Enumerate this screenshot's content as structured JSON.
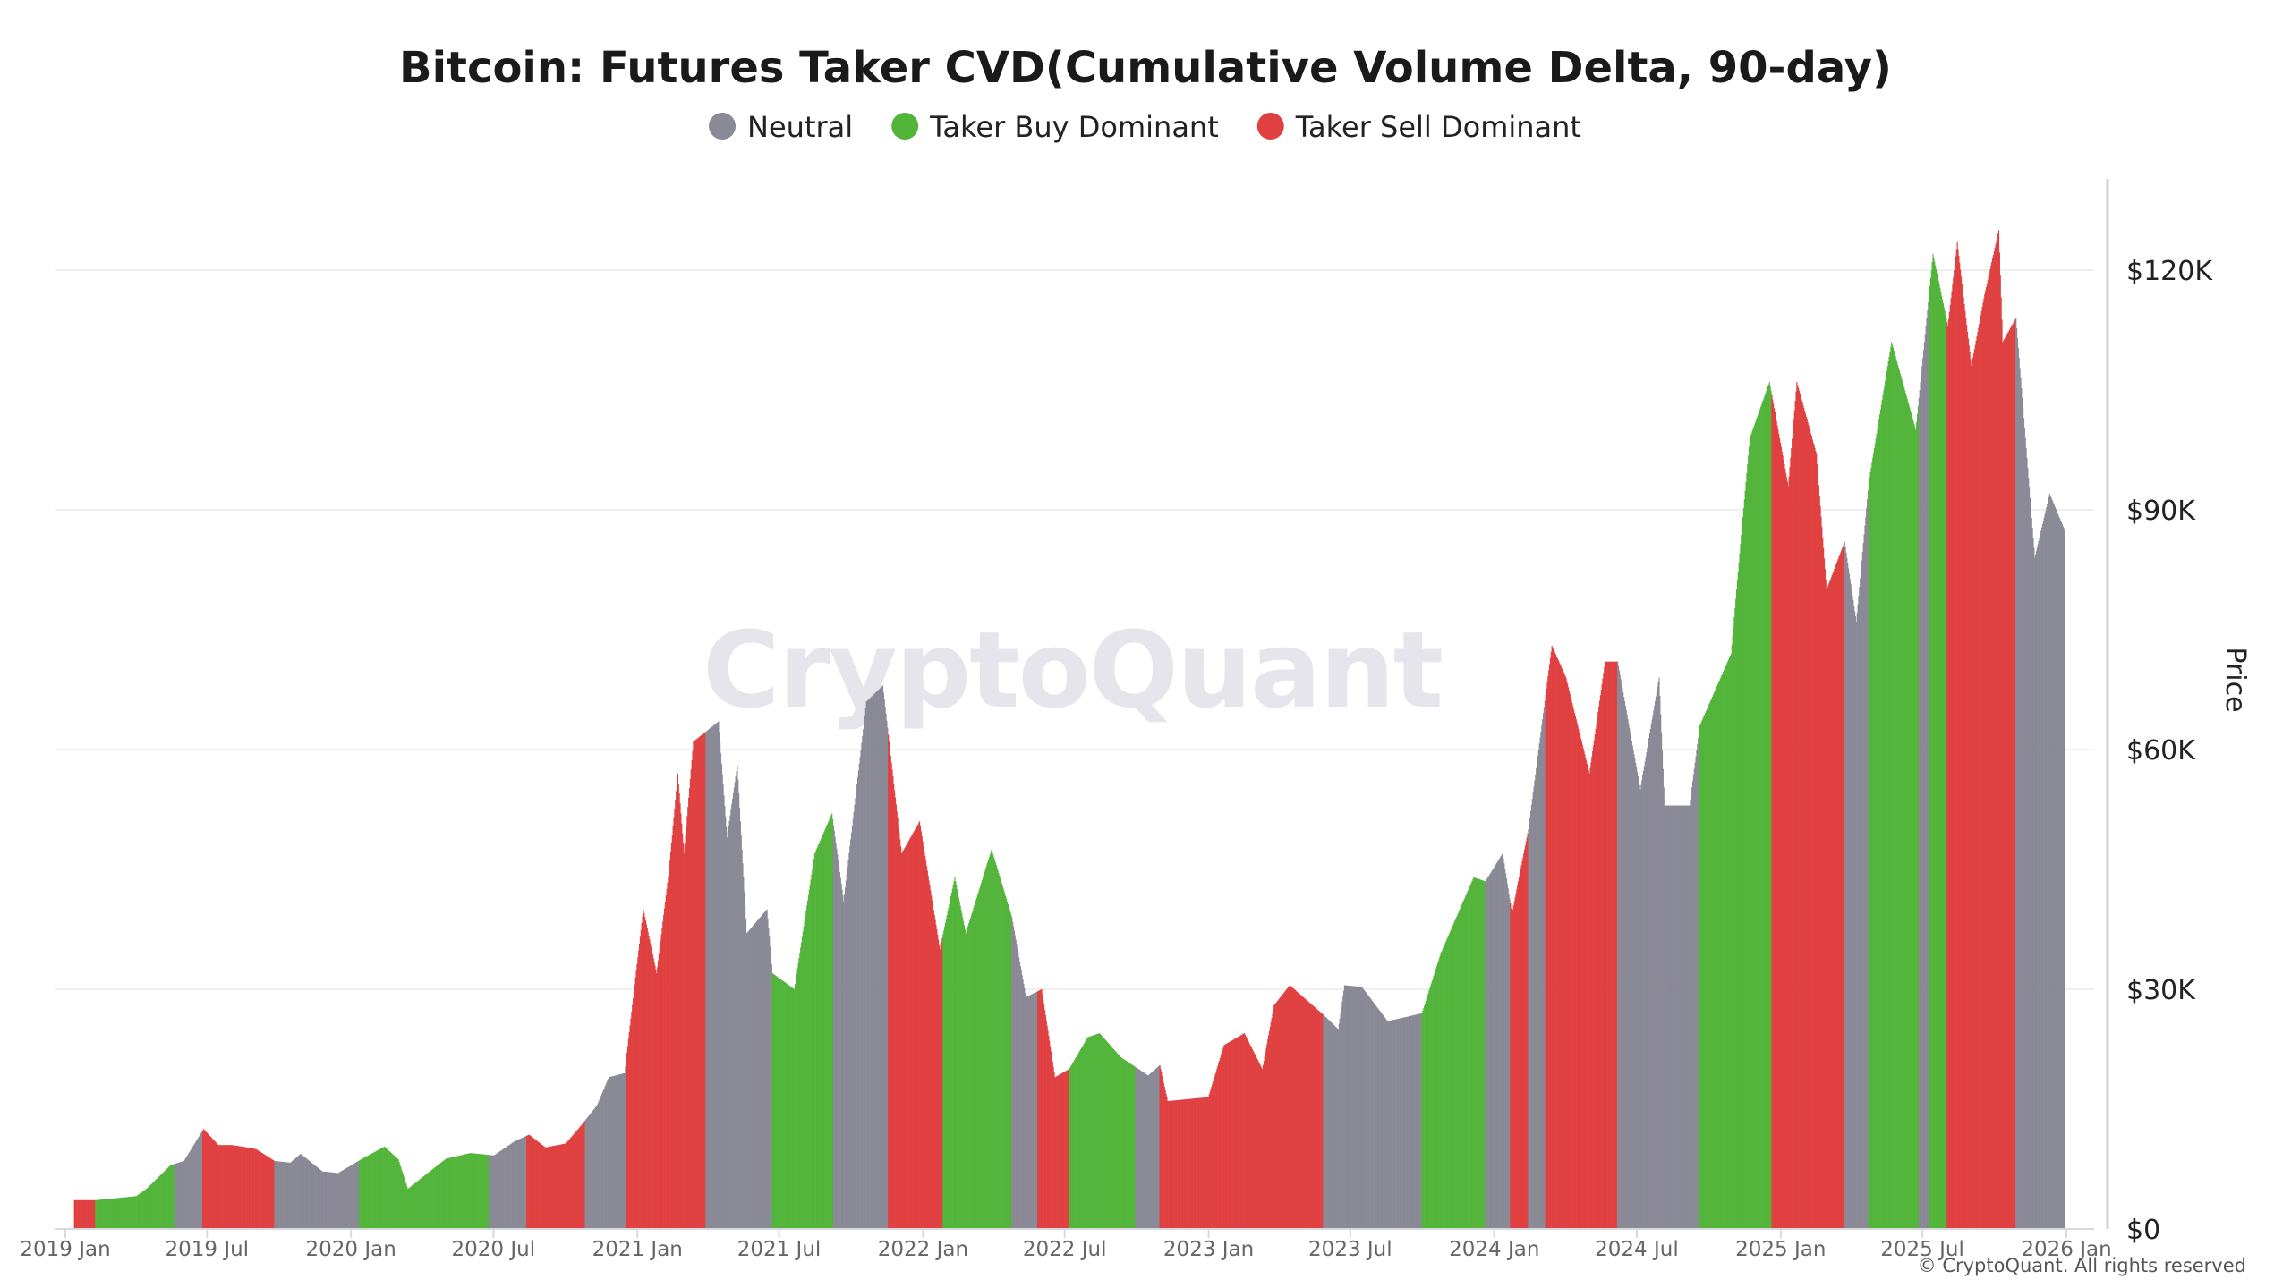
{
  "chart_data": {
    "type": "bar",
    "title": "Bitcoin: Futures Taker CVD(Cumulative Volume Delta, 90-day)",
    "ylabel": "Price",
    "xlabel": "",
    "ylim": [
      0,
      130000
    ],
    "xlim": [
      "2019-01-01",
      "2026-01-15"
    ],
    "grid": true,
    "legend_position": "top",
    "watermark": "CryptoQuant",
    "copyright": "© CryptoQuant. All rights reserved",
    "colors": {
      "Neutral": "#8a8996",
      "Taker Buy Dominant": "#52b53a",
      "Taker Sell Dominant": "#e04040"
    },
    "legend": [
      "Neutral",
      "Taker Buy Dominant",
      "Taker Sell Dominant"
    ],
    "x_ticks": [
      {
        "label": "2019 Jan",
        "date": "2019-01-01"
      },
      {
        "label": "2019 Jul",
        "date": "2019-07-01"
      },
      {
        "label": "2020 Jan",
        "date": "2020-01-01"
      },
      {
        "label": "2020 Jul",
        "date": "2020-07-01"
      },
      {
        "label": "2021 Jan",
        "date": "2021-01-01"
      },
      {
        "label": "2021 Jul",
        "date": "2021-07-01"
      },
      {
        "label": "2022 Jan",
        "date": "2022-01-01"
      },
      {
        "label": "2022 Jul",
        "date": "2022-07-01"
      },
      {
        "label": "2023 Jan",
        "date": "2023-01-01"
      },
      {
        "label": "2023 Jul",
        "date": "2023-07-01"
      },
      {
        "label": "2024 Jan",
        "date": "2024-01-01"
      },
      {
        "label": "2024 Jul",
        "date": "2024-07-01"
      },
      {
        "label": "2025 Jan",
        "date": "2025-01-01"
      },
      {
        "label": "2025 Jul",
        "date": "2025-07-01"
      },
      {
        "label": "2026 Jan",
        "date": "2026-01-01"
      }
    ],
    "y_ticks": [
      {
        "label": "$0",
        "value": 0
      },
      {
        "label": "$30K",
        "value": 30000
      },
      {
        "label": "$60K",
        "value": 60000
      },
      {
        "label": "$90K",
        "value": 90000
      },
      {
        "label": "$120K",
        "value": 120000
      }
    ],
    "regimes": [
      [
        "2019-01-12",
        "2019-02-08",
        "Taker Sell Dominant"
      ],
      [
        "2019-02-08",
        "2019-05-20",
        "Taker Buy Dominant"
      ],
      [
        "2019-05-20",
        "2019-06-25",
        "Neutral"
      ],
      [
        "2019-06-25",
        "2019-09-25",
        "Taker Sell Dominant"
      ],
      [
        "2019-09-25",
        "2020-01-11",
        "Neutral"
      ],
      [
        "2020-01-11",
        "2020-06-25",
        "Taker Buy Dominant"
      ],
      [
        "2020-06-25",
        "2020-08-12",
        "Neutral"
      ],
      [
        "2020-08-12",
        "2020-10-26",
        "Taker Sell Dominant"
      ],
      [
        "2020-10-26",
        "2020-12-17",
        "Neutral"
      ],
      [
        "2020-12-17",
        "2021-03-29",
        "Taker Sell Dominant"
      ],
      [
        "2021-03-29",
        "2021-06-22",
        "Neutral"
      ],
      [
        "2021-06-22",
        "2021-09-08",
        "Taker Buy Dominant"
      ],
      [
        "2021-09-08",
        "2021-11-17",
        "Neutral"
      ],
      [
        "2021-11-17",
        "2022-01-26",
        "Taker Sell Dominant"
      ],
      [
        "2022-01-26",
        "2022-04-24",
        "Taker Buy Dominant"
      ],
      [
        "2022-04-24",
        "2022-05-27",
        "Neutral"
      ],
      [
        "2022-05-27",
        "2022-07-06",
        "Taker Sell Dominant"
      ],
      [
        "2022-07-06",
        "2022-09-29",
        "Taker Buy Dominant"
      ],
      [
        "2022-09-29",
        "2022-10-30",
        "Neutral"
      ],
      [
        "2022-10-30",
        "2023-05-27",
        "Taker Sell Dominant"
      ],
      [
        "2023-05-27",
        "2023-09-30",
        "Neutral"
      ],
      [
        "2023-09-30",
        "2023-12-20",
        "Taker Buy Dominant"
      ],
      [
        "2023-12-20",
        "2024-01-21",
        "Neutral"
      ],
      [
        "2024-01-21",
        "2024-02-13",
        "Taker Sell Dominant"
      ],
      [
        "2024-02-13",
        "2024-03-06",
        "Neutral"
      ],
      [
        "2024-03-06",
        "2024-06-06",
        "Taker Sell Dominant"
      ],
      [
        "2024-06-06",
        "2024-09-19",
        "Neutral"
      ],
      [
        "2024-09-19",
        "2024-12-20",
        "Taker Buy Dominant"
      ],
      [
        "2024-12-20",
        "2025-03-23",
        "Taker Sell Dominant"
      ],
      [
        "2025-03-23",
        "2025-04-23",
        "Neutral"
      ],
      [
        "2025-04-23",
        "2025-06-26",
        "Taker Buy Dominant"
      ],
      [
        "2025-06-26",
        "2025-07-10",
        "Neutral"
      ],
      [
        "2025-07-10",
        "2025-08-01",
        "Taker Buy Dominant"
      ],
      [
        "2025-08-01",
        "2025-10-28",
        "Taker Sell Dominant"
      ],
      [
        "2025-10-28",
        "2025-12-30",
        "Neutral"
      ]
    ],
    "price": [
      [
        "2019-01-12",
        3600
      ],
      [
        "2019-02-08",
        3600
      ],
      [
        "2019-03-01",
        3800
      ],
      [
        "2019-04-01",
        4100
      ],
      [
        "2019-04-15",
        5100
      ],
      [
        "2019-05-15",
        8000
      ],
      [
        "2019-06-01",
        8500
      ],
      [
        "2019-06-26",
        12500
      ],
      [
        "2019-07-15",
        10500
      ],
      [
        "2019-08-01",
        10500
      ],
      [
        "2019-08-15",
        10300
      ],
      [
        "2019-09-01",
        10000
      ],
      [
        "2019-09-25",
        8500
      ],
      [
        "2019-10-15",
        8300
      ],
      [
        "2019-10-28",
        9400
      ],
      [
        "2019-11-25",
        7200
      ],
      [
        "2019-12-15",
        7000
      ],
      [
        "2020-01-15",
        8800
      ],
      [
        "2020-02-12",
        10300
      ],
      [
        "2020-03-01",
        8700
      ],
      [
        "2020-03-13",
        5000
      ],
      [
        "2020-04-01",
        6500
      ],
      [
        "2020-05-01",
        8800
      ],
      [
        "2020-06-01",
        9500
      ],
      [
        "2020-07-01",
        9200
      ],
      [
        "2020-07-28",
        11000
      ],
      [
        "2020-08-15",
        11800
      ],
      [
        "2020-09-05",
        10200
      ],
      [
        "2020-10-01",
        10700
      ],
      [
        "2020-10-21",
        13000
      ],
      [
        "2020-11-10",
        15500
      ],
      [
        "2020-11-25",
        19000
      ],
      [
        "2020-12-15",
        19500
      ],
      [
        "2021-01-08",
        40000
      ],
      [
        "2021-01-25",
        32000
      ],
      [
        "2021-02-10",
        45000
      ],
      [
        "2021-02-21",
        57000
      ],
      [
        "2021-03-01",
        47000
      ],
      [
        "2021-03-13",
        61000
      ],
      [
        "2021-04-14",
        63500
      ],
      [
        "2021-04-25",
        49000
      ],
      [
        "2021-05-08",
        58000
      ],
      [
        "2021-05-20",
        37000
      ],
      [
        "2021-06-15",
        40000
      ],
      [
        "2021-06-22",
        32000
      ],
      [
        "2021-07-20",
        30000
      ],
      [
        "2021-08-15",
        47000
      ],
      [
        "2021-09-06",
        52000
      ],
      [
        "2021-09-21",
        41000
      ],
      [
        "2021-10-20",
        66000
      ],
      [
        "2021-11-10",
        68000
      ],
      [
        "2021-12-04",
        47000
      ],
      [
        "2021-12-27",
        51000
      ],
      [
        "2022-01-22",
        35000
      ],
      [
        "2022-02-10",
        44000
      ],
      [
        "2022-02-24",
        37000
      ],
      [
        "2022-03-29",
        47500
      ],
      [
        "2022-04-24",
        39000
      ],
      [
        "2022-05-12",
        29000
      ],
      [
        "2022-06-01",
        30000
      ],
      [
        "2022-06-18",
        19000
      ],
      [
        "2022-07-06",
        20000
      ],
      [
        "2022-07-30",
        24000
      ],
      [
        "2022-08-14",
        24500
      ],
      [
        "2022-09-10",
        21500
      ],
      [
        "2022-10-15",
        19200
      ],
      [
        "2022-10-30",
        20500
      ],
      [
        "2022-11-09",
        16000
      ],
      [
        "2022-12-31",
        16500
      ],
      [
        "2023-01-20",
        23000
      ],
      [
        "2023-02-15",
        24500
      ],
      [
        "2023-03-10",
        20000
      ],
      [
        "2023-03-25",
        28000
      ],
      [
        "2023-04-14",
        30500
      ],
      [
        "2023-05-27",
        26800
      ],
      [
        "2023-06-15",
        25000
      ],
      [
        "2023-06-23",
        30500
      ],
      [
        "2023-07-15",
        30300
      ],
      [
        "2023-08-17",
        26000
      ],
      [
        "2023-09-30",
        27000
      ],
      [
        "2023-10-24",
        34500
      ],
      [
        "2023-12-05",
        44000
      ],
      [
        "2023-12-20",
        43500
      ],
      [
        "2024-01-11",
        47000
      ],
      [
        "2024-01-23",
        39500
      ],
      [
        "2024-02-13",
        50000
      ],
      [
        "2024-03-14",
        73000
      ],
      [
        "2024-04-01",
        69000
      ],
      [
        "2024-05-01",
        57000
      ],
      [
        "2024-05-21",
        71000
      ],
      [
        "2024-06-06",
        71000
      ],
      [
        "2024-07-05",
        55000
      ],
      [
        "2024-07-29",
        69000
      ],
      [
        "2024-08-05",
        53000
      ],
      [
        "2024-09-06",
        53000
      ],
      [
        "2024-09-19",
        63000
      ],
      [
        "2024-10-29",
        72000
      ],
      [
        "2024-11-12",
        88000
      ],
      [
        "2024-11-22",
        99000
      ],
      [
        "2024-12-17",
        106000
      ],
      [
        "2025-01-10",
        93000
      ],
      [
        "2025-01-21",
        106000
      ],
      [
        "2025-02-15",
        97000
      ],
      [
        "2025-02-28",
        80000
      ],
      [
        "2025-03-23",
        86000
      ],
      [
        "2025-04-07",
        76000
      ],
      [
        "2025-04-23",
        93500
      ],
      [
        "2025-05-22",
        111000
      ],
      [
        "2025-06-22",
        100000
      ],
      [
        "2025-07-14",
        122000
      ],
      [
        "2025-08-02",
        113000
      ],
      [
        "2025-08-14",
        123500
      ],
      [
        "2025-09-01",
        108000
      ],
      [
        "2025-09-18",
        117000
      ],
      [
        "2025-10-06",
        125000
      ],
      [
        "2025-10-11",
        111000
      ],
      [
        "2025-10-28",
        114000
      ],
      [
        "2025-11-21",
        84000
      ],
      [
        "2025-12-10",
        92000
      ],
      [
        "2025-12-29",
        87500
      ]
    ]
  }
}
